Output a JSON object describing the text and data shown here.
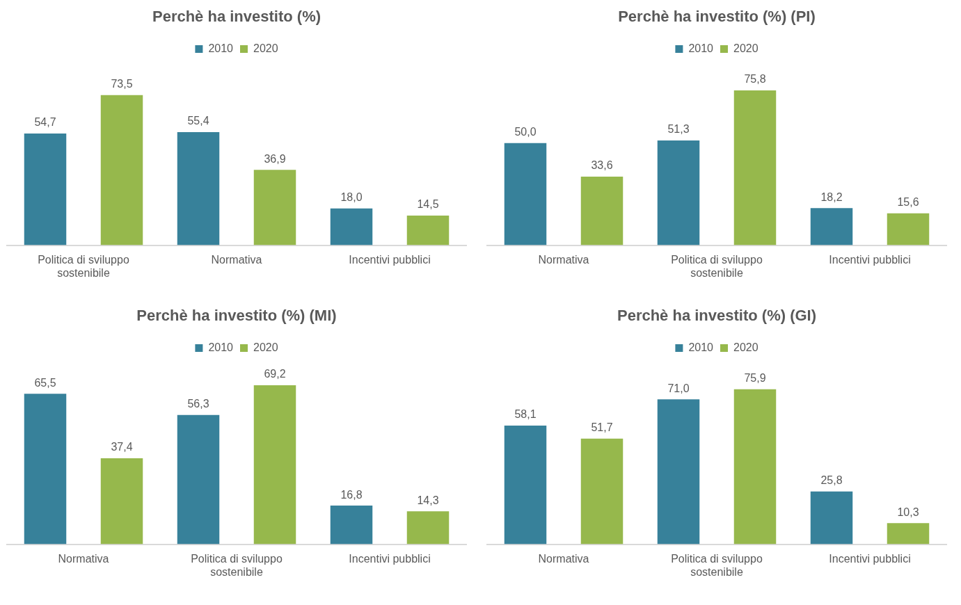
{
  "chart_data": [
    {
      "type": "bar",
      "title": "Perchè ha investito (%)",
      "categories": [
        "Politica di sviluppo sostenibile",
        "Normativa",
        "Incentivi pubblici"
      ],
      "series": [
        {
          "name": "2010",
          "color": "#37819a",
          "values": [
            54.7,
            55.4,
            18.0
          ],
          "value_labels": [
            "54,7",
            "55,4",
            "18,0"
          ]
        },
        {
          "name": "2020",
          "color": "#96b84c",
          "values": [
            73.5,
            36.9,
            14.5
          ],
          "value_labels": [
            "73,5",
            "36,9",
            "14,5"
          ]
        }
      ],
      "legend": "top",
      "tick_labels": "x"
    },
    {
      "type": "bar",
      "title": "Perchè ha investito (%) (PI)",
      "categories": [
        "Normativa",
        "Politica di sviluppo sostenibile",
        "Incentivi pubblici"
      ],
      "series": [
        {
          "name": "2010",
          "color": "#37819a",
          "values": [
            50.0,
            51.3,
            18.2
          ],
          "value_labels": [
            "50,0",
            "51,3",
            "18,2"
          ]
        },
        {
          "name": "2020",
          "color": "#96b84c",
          "values": [
            33.6,
            75.8,
            15.6
          ],
          "value_labels": [
            "33,6",
            "75,8",
            "15,6"
          ]
        }
      ],
      "legend": "top",
      "tick_labels": "x"
    },
    {
      "type": "bar",
      "title": "Perchè ha investito (%) (MI)",
      "categories": [
        "Normativa",
        "Politica di sviluppo sostenibile",
        "Incentivi pubblici"
      ],
      "series": [
        {
          "name": "2010",
          "color": "#37819a",
          "values": [
            65.5,
            56.3,
            16.8
          ],
          "value_labels": [
            "65,5",
            "56,3",
            "16,8"
          ]
        },
        {
          "name": "2020",
          "color": "#96b84c",
          "values": [
            37.4,
            69.2,
            14.3
          ],
          "value_labels": [
            "37,4",
            "69,2",
            "14,3"
          ]
        }
      ],
      "legend": "top",
      "tick_labels": "x"
    },
    {
      "type": "bar",
      "title": "Perchè ha investito (%) (GI)",
      "categories": [
        "Normativa",
        "Politica di sviluppo sostenibile",
        "Incentivi pubblici"
      ],
      "series": [
        {
          "name": "2010",
          "color": "#37819a",
          "values": [
            58.1,
            71.0,
            25.8
          ],
          "value_labels": [
            "58,1",
            "71,0",
            "25,8"
          ]
        },
        {
          "name": "2020",
          "color": "#96b84c",
          "values": [
            51.7,
            75.9,
            10.3
          ],
          "value_labels": [
            "51,7",
            "75,9",
            "10,3"
          ]
        }
      ],
      "legend": "top",
      "tick_labels": "x"
    }
  ]
}
